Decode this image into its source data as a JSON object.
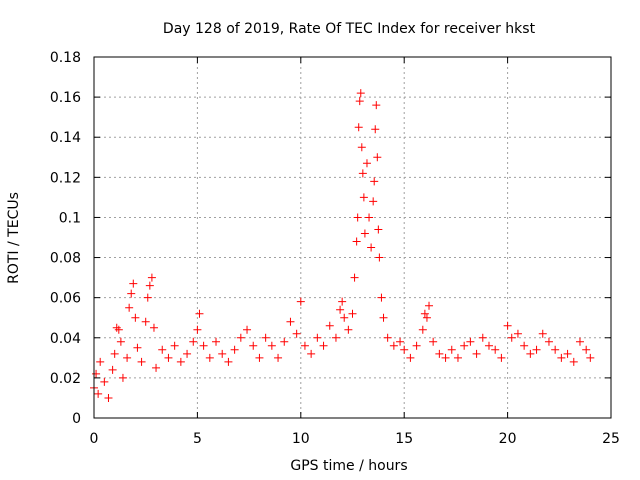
{
  "chart_data": {
    "type": "scatter",
    "title": "Day 128 of 2019, Rate Of TEC Index for receiver hkst",
    "xlabel": "GPS time / hours",
    "ylabel": "ROTI / TECUs",
    "xlim": [
      0,
      25
    ],
    "ylim": [
      0,
      0.18
    ],
    "xticks": [
      0,
      5,
      10,
      15,
      20,
      25
    ],
    "xtick_labels": [
      "0",
      "5",
      "10",
      "15",
      "20",
      "25"
    ],
    "yticks": [
      0,
      0.02,
      0.04,
      0.06,
      0.08,
      0.1,
      0.12,
      0.14,
      0.16,
      0.18
    ],
    "ytick_labels": [
      "0",
      "0.02",
      "0.04",
      "0.06",
      "0.08",
      "0.1",
      "0.12",
      "0.14",
      "0.16",
      "0.18"
    ],
    "grid": true,
    "marker": "+",
    "color": "#ff0000",
    "series": [
      {
        "name": "ROTI",
        "points": [
          [
            0.0,
            0.015
          ],
          [
            0.1,
            0.022
          ],
          [
            0.2,
            0.012
          ],
          [
            0.3,
            0.028
          ],
          [
            0.5,
            0.018
          ],
          [
            0.7,
            0.01
          ],
          [
            0.9,
            0.024
          ],
          [
            1.0,
            0.032
          ],
          [
            1.1,
            0.045
          ],
          [
            1.2,
            0.044
          ],
          [
            1.3,
            0.038
          ],
          [
            1.4,
            0.02
          ],
          [
            1.6,
            0.03
          ],
          [
            1.7,
            0.055
          ],
          [
            1.8,
            0.062
          ],
          [
            1.9,
            0.067
          ],
          [
            2.0,
            0.05
          ],
          [
            2.1,
            0.035
          ],
          [
            2.3,
            0.028
          ],
          [
            2.5,
            0.048
          ],
          [
            2.6,
            0.06
          ],
          [
            2.7,
            0.066
          ],
          [
            2.8,
            0.07
          ],
          [
            2.9,
            0.045
          ],
          [
            3.0,
            0.025
          ],
          [
            3.3,
            0.034
          ],
          [
            3.6,
            0.03
          ],
          [
            3.9,
            0.036
          ],
          [
            4.2,
            0.028
          ],
          [
            4.5,
            0.032
          ],
          [
            4.8,
            0.038
          ],
          [
            5.0,
            0.044
          ],
          [
            5.1,
            0.052
          ],
          [
            5.3,
            0.036
          ],
          [
            5.6,
            0.03
          ],
          [
            5.9,
            0.038
          ],
          [
            6.2,
            0.032
          ],
          [
            6.5,
            0.028
          ],
          [
            6.8,
            0.034
          ],
          [
            7.1,
            0.04
          ],
          [
            7.4,
            0.044
          ],
          [
            7.7,
            0.036
          ],
          [
            8.0,
            0.03
          ],
          [
            8.3,
            0.04
          ],
          [
            8.6,
            0.036
          ],
          [
            8.9,
            0.03
          ],
          [
            9.2,
            0.038
          ],
          [
            9.5,
            0.048
          ],
          [
            9.8,
            0.042
          ],
          [
            10.0,
            0.058
          ],
          [
            10.2,
            0.036
          ],
          [
            10.5,
            0.032
          ],
          [
            10.8,
            0.04
          ],
          [
            11.1,
            0.036
          ],
          [
            11.4,
            0.046
          ],
          [
            11.7,
            0.04
          ],
          [
            11.9,
            0.054
          ],
          [
            12.0,
            0.058
          ],
          [
            12.1,
            0.05
          ],
          [
            12.3,
            0.044
          ],
          [
            12.5,
            0.052
          ],
          [
            12.6,
            0.07
          ],
          [
            12.7,
            0.088
          ],
          [
            12.75,
            0.1
          ],
          [
            12.8,
            0.145
          ],
          [
            12.85,
            0.158
          ],
          [
            12.9,
            0.162
          ],
          [
            12.95,
            0.135
          ],
          [
            13.0,
            0.122
          ],
          [
            13.05,
            0.11
          ],
          [
            13.1,
            0.092
          ],
          [
            13.2,
            0.127
          ],
          [
            13.3,
            0.1
          ],
          [
            13.4,
            0.085
          ],
          [
            13.5,
            0.108
          ],
          [
            13.55,
            0.118
          ],
          [
            13.6,
            0.144
          ],
          [
            13.65,
            0.156
          ],
          [
            13.7,
            0.13
          ],
          [
            13.75,
            0.094
          ],
          [
            13.8,
            0.08
          ],
          [
            13.9,
            0.06
          ],
          [
            14.0,
            0.05
          ],
          [
            14.2,
            0.04
          ],
          [
            14.5,
            0.036
          ],
          [
            14.8,
            0.038
          ],
          [
            15.0,
            0.034
          ],
          [
            15.3,
            0.03
          ],
          [
            15.6,
            0.036
          ],
          [
            15.9,
            0.044
          ],
          [
            16.0,
            0.052
          ],
          [
            16.1,
            0.05
          ],
          [
            16.2,
            0.056
          ],
          [
            16.4,
            0.038
          ],
          [
            16.7,
            0.032
          ],
          [
            17.0,
            0.03
          ],
          [
            17.3,
            0.034
          ],
          [
            17.6,
            0.03
          ],
          [
            17.9,
            0.036
          ],
          [
            18.2,
            0.038
          ],
          [
            18.5,
            0.032
          ],
          [
            18.8,
            0.04
          ],
          [
            19.1,
            0.036
          ],
          [
            19.4,
            0.034
          ],
          [
            19.7,
            0.03
          ],
          [
            20.0,
            0.046
          ],
          [
            20.2,
            0.04
          ],
          [
            20.5,
            0.042
          ],
          [
            20.8,
            0.036
          ],
          [
            21.1,
            0.032
          ],
          [
            21.4,
            0.034
          ],
          [
            21.7,
            0.042
          ],
          [
            22.0,
            0.038
          ],
          [
            22.3,
            0.034
          ],
          [
            22.6,
            0.03
          ],
          [
            22.9,
            0.032
          ],
          [
            23.2,
            0.028
          ],
          [
            23.5,
            0.038
          ],
          [
            23.8,
            0.034
          ],
          [
            24.0,
            0.03
          ]
        ]
      }
    ]
  }
}
